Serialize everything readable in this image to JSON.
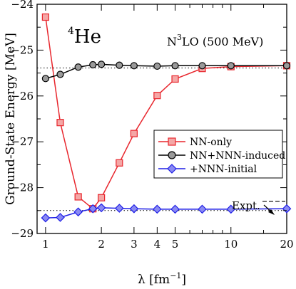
{
  "chart_data": {
    "type": "line",
    "x_scale": "log",
    "xlim": [
      0.9,
      20
    ],
    "ylim": [
      -29,
      -24
    ],
    "x_ticks": [
      1,
      2,
      3,
      4,
      5,
      10,
      20
    ],
    "x_tick_labels": [
      "1",
      "2",
      "3",
      "4",
      "5",
      "10",
      "20"
    ],
    "y_ticks": [
      -29,
      -28,
      -27,
      -26,
      -25,
      -24
    ],
    "y_tick_labels": [
      "−29",
      "−28",
      "−27",
      "−26",
      "−25",
      "−24"
    ],
    "xlabel": {
      "prefix": "λ [fm",
      "sup": "−1",
      "suffix": "]"
    },
    "ylabel": "Ground-State Energy [MeV]",
    "annotation_nucleus": {
      "sup": "4",
      "main": "He"
    },
    "annotation_method": {
      "main": "N",
      "sup": "3",
      "rest": "LO (500 MeV)"
    },
    "expt_label": "Expt.",
    "expt_value": -28.3,
    "grid": false,
    "legend_position": "right",
    "reference_lines": [
      {
        "name": "nn-nnn-induced-converged",
        "y": -25.39,
        "style": "dotted"
      },
      {
        "name": "nnn-initial-converged",
        "y": -28.5,
        "style": "dotted"
      }
    ],
    "series": [
      {
        "name": "NN-only",
        "color": "#e8262d",
        "marker": "square",
        "x": [
          1.0,
          1.2,
          1.5,
          1.8,
          2.0,
          2.5,
          3.0,
          4.0,
          5.0,
          7.0,
          10.0,
          20.0
        ],
        "y": [
          -24.28,
          -26.58,
          -28.2,
          -28.46,
          -28.22,
          -27.46,
          -26.82,
          -25.99,
          -25.63,
          -25.4,
          -25.36,
          -25.34
        ]
      },
      {
        "name": "NN+NNN-induced",
        "color": "#000000",
        "marker": "circle",
        "x": [
          1.0,
          1.2,
          1.5,
          1.8,
          2.0,
          2.5,
          3.0,
          4.0,
          5.0,
          7.0,
          10.0,
          20.0
        ],
        "y": [
          -25.62,
          -25.53,
          -25.37,
          -25.32,
          -25.31,
          -25.33,
          -25.34,
          -25.35,
          -25.34,
          -25.34,
          -25.34,
          -25.34
        ]
      },
      {
        "name": "+NNN-initial",
        "color": "#1f1fe6",
        "marker": "diamond",
        "x": [
          1.0,
          1.2,
          1.5,
          1.8,
          2.0,
          2.5,
          3.0,
          4.0,
          5.0,
          7.0,
          10.0,
          20.0
        ],
        "y": [
          -28.66,
          -28.65,
          -28.53,
          -28.46,
          -28.44,
          -28.45,
          -28.46,
          -28.47,
          -28.47,
          -28.47,
          -28.47,
          -28.46
        ]
      }
    ]
  }
}
